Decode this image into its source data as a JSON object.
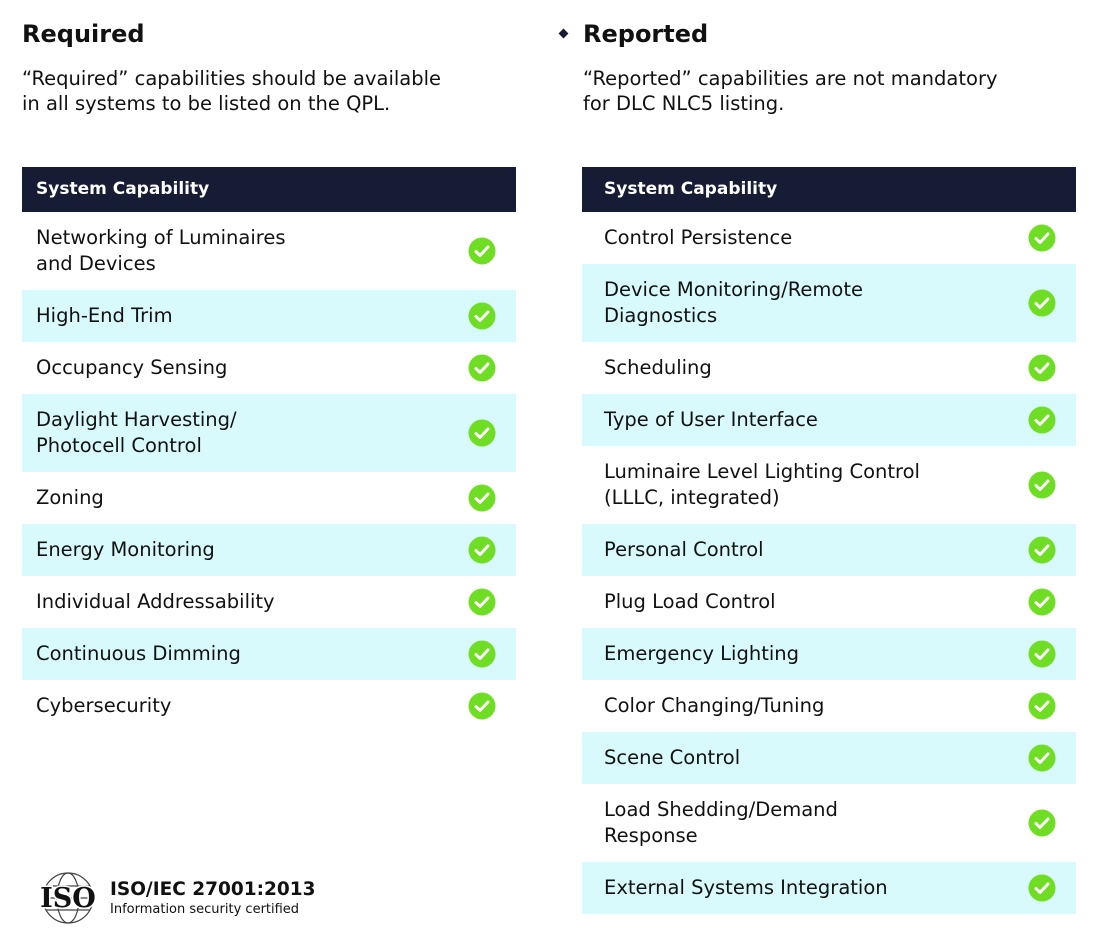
{
  "left": {
    "title": "Required",
    "description": [
      "“Required” capabilities should be available",
      "in all systems to be listed on the QPL."
    ],
    "table": {
      "header": "System Capability",
      "rows": [
        [
          "Networking of Luminaires",
          "and Devices"
        ],
        [
          "High-End Trim"
        ],
        [
          "Occupancy Sensing"
        ],
        [
          "Daylight Harvesting/",
          "Photocell Control"
        ],
        [
          "Zoning"
        ],
        [
          "Energy Monitoring"
        ],
        [
          "Individual Addressability"
        ],
        [
          "Continuous Dimming"
        ],
        [
          "Cybersecurity"
        ]
      ]
    }
  },
  "right": {
    "title": "Reported",
    "description": [
      "“Reported” capabilities are not mandatory",
      "for DLC NLC5 listing."
    ],
    "table": {
      "header": "System Capability",
      "rows": [
        [
          "Control Persistence"
        ],
        [
          "Device Monitoring/Remote",
          "Diagnostics"
        ],
        [
          "Scheduling"
        ],
        [
          "Type of User Interface"
        ],
        [
          "Luminaire Level Lighting Control",
          "(LLLC, integrated)"
        ],
        [
          "Personal Control"
        ],
        [
          "Plug Load Control"
        ],
        [
          "Emergency Lighting"
        ],
        [
          "Color Changing/Tuning"
        ],
        [
          "Scene Control"
        ],
        [
          "Load Shedding/Demand",
          "Response"
        ],
        [
          "External Systems Integration"
        ]
      ]
    }
  },
  "certification": {
    "logo": "ISO",
    "title": "ISO/IEC 27001:2013",
    "subtitle": "Information security certified"
  }
}
